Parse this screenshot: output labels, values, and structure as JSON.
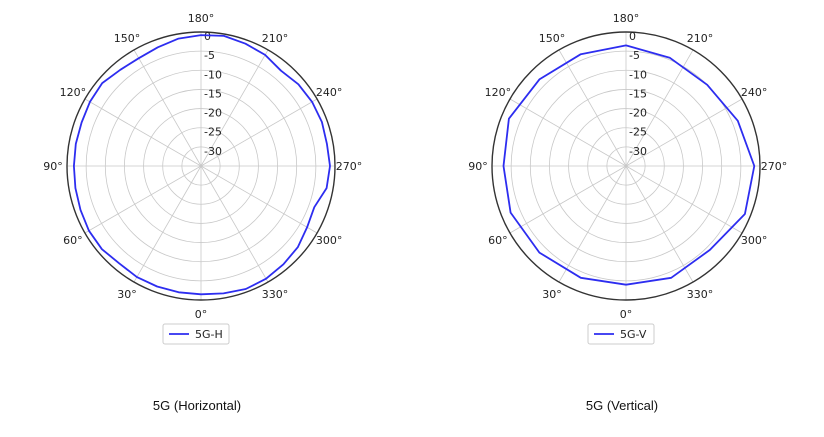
{
  "chart_data": [
    {
      "type": "polar-line",
      "caption": "5G (Horizontal)",
      "theta_zero_location": "bottom",
      "theta_direction": "counterclockwise",
      "r_range": [
        -35,
        0
      ],
      "r_ticks": [
        "0",
        "-5",
        "-10",
        "-15",
        "-20",
        "-25",
        "-30"
      ],
      "r_tick_values": [
        0,
        -5,
        -10,
        -15,
        -20,
        -25,
        -30
      ],
      "angle_ticks": [
        {
          "deg": 0,
          "label": "0°"
        },
        {
          "deg": 30,
          "label": "30°"
        },
        {
          "deg": 60,
          "label": "60°"
        },
        {
          "deg": 90,
          "label": "90°"
        },
        {
          "deg": 120,
          "label": "120°"
        },
        {
          "deg": 150,
          "label": "150°"
        },
        {
          "deg": 180,
          "label": "180°"
        },
        {
          "deg": 210,
          "label": "210°"
        },
        {
          "deg": 240,
          "label": "240°"
        },
        {
          "deg": 270,
          "label": "270°"
        },
        {
          "deg": 300,
          "label": "300°"
        },
        {
          "deg": 330,
          "label": "330°"
        }
      ],
      "grid": true,
      "legend_position": "bottom",
      "color": "#2d2df0",
      "series": [
        {
          "name": "5G-H",
          "theta": [
            0,
            10,
            20,
            30,
            40,
            50,
            60,
            70,
            80,
            90,
            100,
            110,
            120,
            130,
            140,
            150,
            160,
            170,
            180,
            190,
            200,
            210,
            220,
            230,
            240,
            250,
            260,
            270,
            280,
            290,
            300,
            310,
            320,
            330,
            340,
            350
          ],
          "r": [
            -1.5,
            -1.5,
            -1.5,
            -1.5,
            -1.8,
            -1.2,
            -1.2,
            -1.5,
            -1.7,
            -1.8,
            -1.8,
            -1.8,
            -1.5,
            -1.3,
            -2.2,
            -2.5,
            -2.0,
            -1.2,
            -0.8,
            -0.5,
            -1.0,
            -1.5,
            -2.5,
            -1.8,
            -1.5,
            -1.4,
            -1.6,
            -1.3,
            -1.7,
            -3.5,
            -3.0,
            -2.0,
            -1.5,
            -1.0,
            -0.8,
            -1.2
          ]
        }
      ]
    },
    {
      "type": "polar-line",
      "caption": "5G (Vertical)",
      "theta_zero_location": "bottom",
      "theta_direction": "counterclockwise",
      "r_range": [
        -35,
        0
      ],
      "r_ticks": [
        "0",
        "-5",
        "-10",
        "-15",
        "-20",
        "-25",
        "-30"
      ],
      "r_tick_values": [
        0,
        -5,
        -10,
        -15,
        -20,
        -25,
        -30
      ],
      "angle_ticks": [
        {
          "deg": 0,
          "label": "0°"
        },
        {
          "deg": 30,
          "label": "30°"
        },
        {
          "deg": 60,
          "label": "60°"
        },
        {
          "deg": 90,
          "label": "90°"
        },
        {
          "deg": 120,
          "label": "120°"
        },
        {
          "deg": 150,
          "label": "150°"
        },
        {
          "deg": 180,
          "label": "180°"
        },
        {
          "deg": 210,
          "label": "210°"
        },
        {
          "deg": 240,
          "label": "240°"
        },
        {
          "deg": 270,
          "label": "270°"
        },
        {
          "deg": 300,
          "label": "300°"
        },
        {
          "deg": 330,
          "label": "330°"
        }
      ],
      "grid": true,
      "legend_position": "bottom",
      "color": "#2d2df0",
      "series": [
        {
          "name": "5G-V",
          "theta": [
            0,
            22,
            45,
            68,
            90,
            112,
            135,
            158,
            180,
            202,
            225,
            248,
            270,
            292,
            315,
            338
          ],
          "r": [
            -4.0,
            -3.5,
            -3.0,
            -2.5,
            -3.0,
            -2.0,
            -3.0,
            -3.5,
            -3.5,
            -4.5,
            -5.0,
            -3.5,
            -1.5,
            -1.5,
            -4.0,
            -3.5
          ]
        }
      ]
    }
  ]
}
